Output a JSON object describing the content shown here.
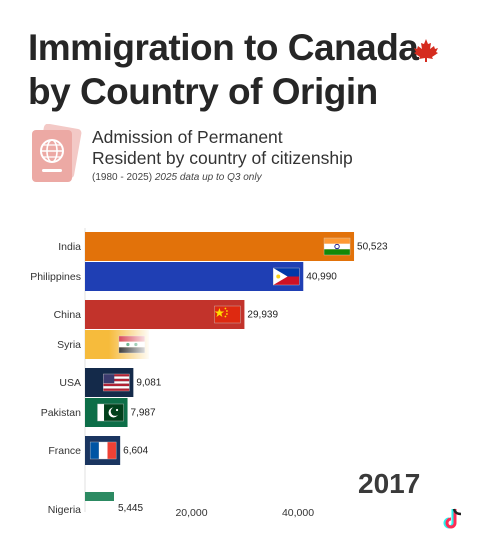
{
  "header": {
    "title_line1": "Immigration to Canada",
    "title_line2": "by Country of Origin",
    "subtitle_line1": "Admission of Permanent",
    "subtitle_line2": "Resident by country of citizenship",
    "note_range": "(1980 - 2025)",
    "note_italic": "2025 data up to Q3 only",
    "icons": [
      "maple-leaf-icon",
      "passport-icon"
    ]
  },
  "year_label": "2017",
  "chart_data": {
    "type": "bar",
    "orientation": "horizontal",
    "title": "",
    "xlabel": "",
    "ylabel": "",
    "xlim": [
      0,
      52000
    ],
    "grid": false,
    "categories": [
      "India",
      "Philippines",
      "China",
      "Syria",
      "USA",
      "Pakistan",
      "France",
      "Nigeria"
    ],
    "values": [
      50523,
      40990,
      29939,
      12000,
      9081,
      7987,
      6604,
      5445
    ],
    "value_labels": [
      "50,523",
      "40,990",
      "29,939",
      "",
      "9,081",
      "7,987",
      "6,604",
      "5,445"
    ],
    "x_ticks": [
      {
        "value": 20000,
        "label": "20,000"
      },
      {
        "value": 40000,
        "label": "40,000"
      }
    ],
    "colors": [
      "#e2720a",
      "#1f3fb4",
      "#c2332b",
      "#f6bb3c",
      "#142a4a",
      "#0d6e48",
      "#1a3560",
      "#2c8a62"
    ],
    "flags": [
      "india-flag-icon",
      "philippines-flag-icon",
      "china-flag-icon",
      "syria-flag-icon",
      "usa-flag-icon",
      "pakistan-flag-icon",
      "france-flag-icon",
      ""
    ]
  }
}
